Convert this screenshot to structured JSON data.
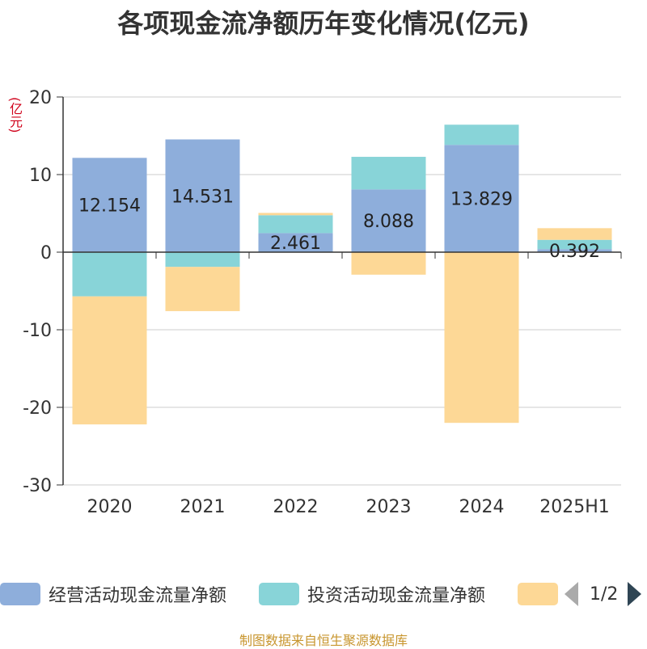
{
  "title": "各项现金流净额历年变化情况(亿元)",
  "unit_label": "(亿元)",
  "legend": {
    "items": [
      {
        "label": "经营活动现金流量净额",
        "color": "#8eaedb"
      },
      {
        "label": "投资活动现金流量净额",
        "color": "#88d4d8"
      },
      {
        "label": "",
        "color": "#fdd896"
      }
    ],
    "page": "1/2"
  },
  "source": "制图数据来自恒生聚源数据库",
  "chart_data": {
    "type": "bar",
    "stacked": true,
    "categories": [
      "2020",
      "2021",
      "2022",
      "2023",
      "2024",
      "2025H1"
    ],
    "ylim": [
      -30,
      20
    ],
    "yticks": [
      20,
      10,
      0,
      -10,
      -20,
      -30
    ],
    "grid": true,
    "legend_position": "bottom",
    "series": [
      {
        "name": "经营活动现金流量净额",
        "color": "#8eaedb",
        "values": [
          12.154,
          14.531,
          2.461,
          8.088,
          13.829,
          0.392
        ]
      },
      {
        "name": "投资活动现金流量净额",
        "color": "#88d4d8",
        "values": [
          -5.7,
          -1.9,
          2.3,
          4.2,
          2.6,
          1.2
        ]
      },
      {
        "name": "",
        "color": "#fdd896",
        "values": [
          -16.5,
          -5.7,
          0.3,
          -2.9,
          -22.0,
          1.5
        ]
      }
    ],
    "data_labels": [
      "12.154",
      "14.531",
      "2.461",
      "8.088",
      "13.829",
      "0.392"
    ]
  }
}
